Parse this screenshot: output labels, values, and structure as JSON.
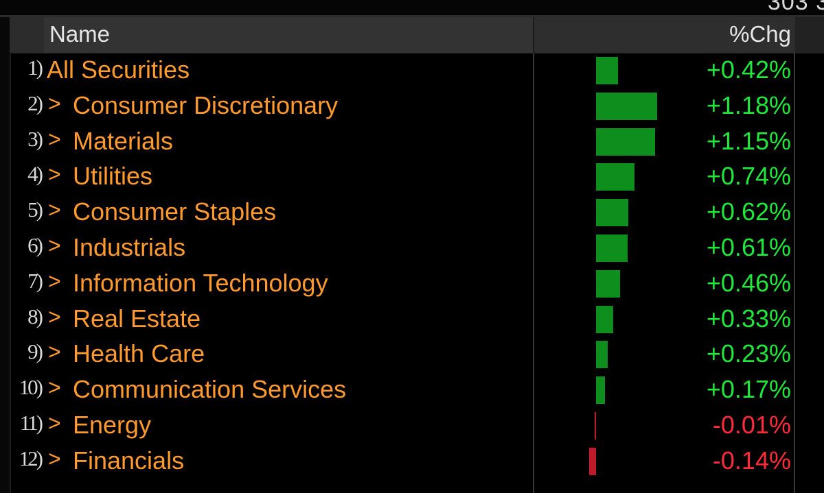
{
  "top_clip": "303 3",
  "header": {
    "name": "Name",
    "chg": "%Chg"
  },
  "colors": {
    "positive": "#1fe83b",
    "negative": "#ff2a3a",
    "bar_pos": "#0e8f1d",
    "bar_neg": "#c01a2a",
    "label": "#ff9a2e"
  },
  "rows": [
    {
      "idx": "1)",
      "chev": "",
      "name": "All Securities",
      "chg_text": "+0.42%",
      "chg": 0.42
    },
    {
      "idx": "2)",
      "chev": ">",
      "name": "Consumer Discretionary",
      "chg_text": "+1.18%",
      "chg": 1.18
    },
    {
      "idx": "3)",
      "chev": ">",
      "name": "Materials",
      "chg_text": "+1.15%",
      "chg": 1.15
    },
    {
      "idx": "4)",
      "chev": ">",
      "name": "Utilities",
      "chg_text": "+0.74%",
      "chg": 0.74
    },
    {
      "idx": "5)",
      "chev": ">",
      "name": "Consumer Staples",
      "chg_text": "+0.62%",
      "chg": 0.62
    },
    {
      "idx": "6)",
      "chev": ">",
      "name": "Industrials",
      "chg_text": "+0.61%",
      "chg": 0.61
    },
    {
      "idx": "7)",
      "chev": ">",
      "name": "Information Technology",
      "chg_text": "+0.46%",
      "chg": 0.46
    },
    {
      "idx": "8)",
      "chev": ">",
      "name": "Real Estate",
      "chg_text": "+0.33%",
      "chg": 0.33
    },
    {
      "idx": "9)",
      "chev": ">",
      "name": "Health Care",
      "chg_text": "+0.23%",
      "chg": 0.23
    },
    {
      "idx": "10)",
      "chev": ">",
      "name": "Communication Services",
      "chg_text": "+0.17%",
      "chg": 0.17
    },
    {
      "idx": "11)",
      "chev": ">",
      "name": "Energy",
      "chg_text": "-0.01%",
      "chg": -0.01
    },
    {
      "idx": "12)",
      "chev": ">",
      "name": "Financials",
      "chg_text": "-0.14%",
      "chg": -0.14
    }
  ]
}
